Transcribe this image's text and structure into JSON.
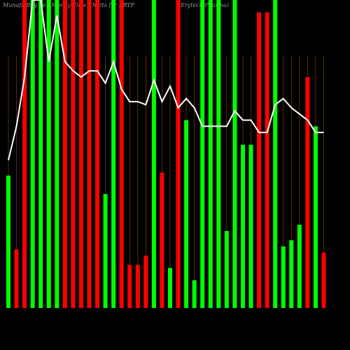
{
  "chart_data": {
    "type": "bar",
    "title": "Munafa Buy Sell Money Flow Charts for ERYP",
    "subtitle": "(Erytech Pharma)",
    "categories": [
      null,
      null,
      null,
      null,
      null,
      null,
      null,
      null,
      null,
      null,
      null,
      null,
      null,
      null,
      null,
      null,
      null,
      null,
      null,
      null,
      null,
      null,
      null,
      null,
      null,
      null,
      null,
      null,
      null,
      null,
      null,
      null,
      null,
      null,
      null,
      null,
      null,
      null,
      null,
      null
    ],
    "values": [
      43,
      19,
      100,
      100,
      100,
      100,
      100,
      100,
      100,
      100,
      100,
      100,
      37,
      100,
      100,
      14,
      14,
      17,
      100,
      44,
      13,
      100,
      61,
      9,
      100,
      100,
      100,
      25,
      100,
      53,
      53,
      96,
      96,
      100,
      20,
      22,
      27,
      75,
      59,
      18
    ],
    "colors": [
      "#00ff00",
      "#ff0000",
      "#ff0000",
      "#00ff00",
      "#00ff00",
      "#00ff00",
      "#00ff00",
      "#ff0000",
      "#ff0000",
      "#ff0000",
      "#ff0000",
      "#ff0000",
      "#00ff00",
      "#00ff00",
      "#ff0000",
      "#ff0000",
      "#ff0000",
      "#ff0000",
      "#00ff00",
      "#ff0000",
      "#00ff00",
      "#ff0000",
      "#00ff00",
      "#00ff00",
      "#00ff00",
      "#00ff00",
      "#00ff00",
      "#00ff00",
      "#00ff00",
      "#00ff00",
      "#00ff00",
      "#ff0000",
      "#ff0000",
      "#00ff00",
      "#00ff00",
      "#00ff00",
      "#00ff00",
      "#ff0000",
      "#00ff00",
      "#ff0000"
    ],
    "line": {
      "color": "#ffffff",
      "values": [
        48,
        59,
        75,
        100,
        100,
        80,
        95,
        80,
        77,
        75,
        77,
        77,
        73,
        80,
        71,
        67,
        67,
        66,
        74,
        67,
        72,
        65,
        68,
        65,
        59,
        59,
        59,
        59,
        64,
        61,
        61,
        57,
        57,
        66,
        68,
        65,
        63,
        61,
        57,
        57
      ]
    },
    "guide_color": "#8a4a12",
    "ylim": [
      0,
      100
    ]
  }
}
